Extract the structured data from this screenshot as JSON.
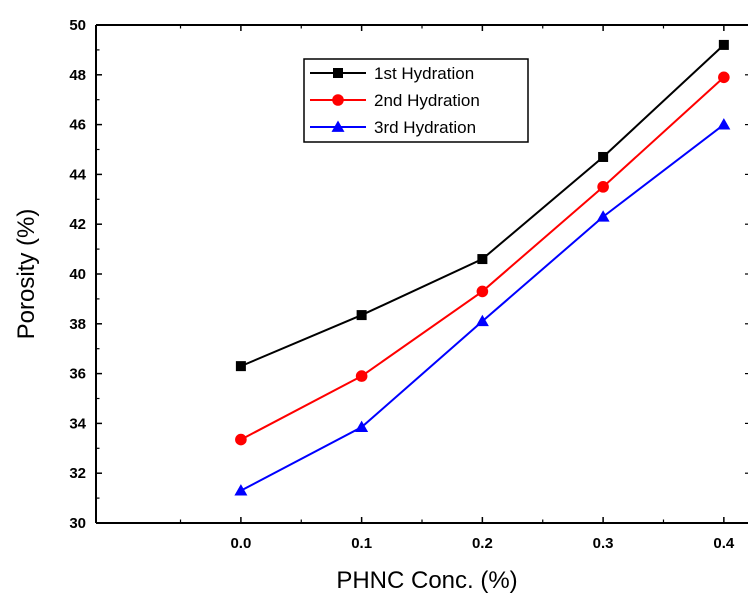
{
  "chart_data": {
    "type": "line",
    "xlabel": "PHNC Conc. (%)",
    "ylabel": "Porosity (%)",
    "xlim": [
      -0.12,
      0.42
    ],
    "ylim": [
      30,
      50
    ],
    "xticks": [
      "0.0",
      "0.1",
      "0.2",
      "0.3",
      "0.4"
    ],
    "yticks": [
      "30",
      "32",
      "34",
      "36",
      "38",
      "40",
      "42",
      "44",
      "46",
      "48",
      "50"
    ],
    "x": [
      0.0,
      0.1,
      0.2,
      0.3,
      0.4
    ],
    "series": [
      {
        "name": "1st Hydration",
        "color": "#000000",
        "marker": "square",
        "values": [
          36.3,
          38.35,
          40.6,
          44.7,
          49.2
        ]
      },
      {
        "name": "2nd Hydration",
        "color": "#ff0000",
        "marker": "circle",
        "values": [
          33.35,
          35.9,
          39.3,
          43.5,
          47.9
        ]
      },
      {
        "name": "3rd Hydration",
        "color": "#0000ff",
        "marker": "triangle",
        "values": [
          31.3,
          33.85,
          38.1,
          42.3,
          46.0
        ]
      }
    ],
    "grid": false,
    "legend_position": "top-center"
  }
}
